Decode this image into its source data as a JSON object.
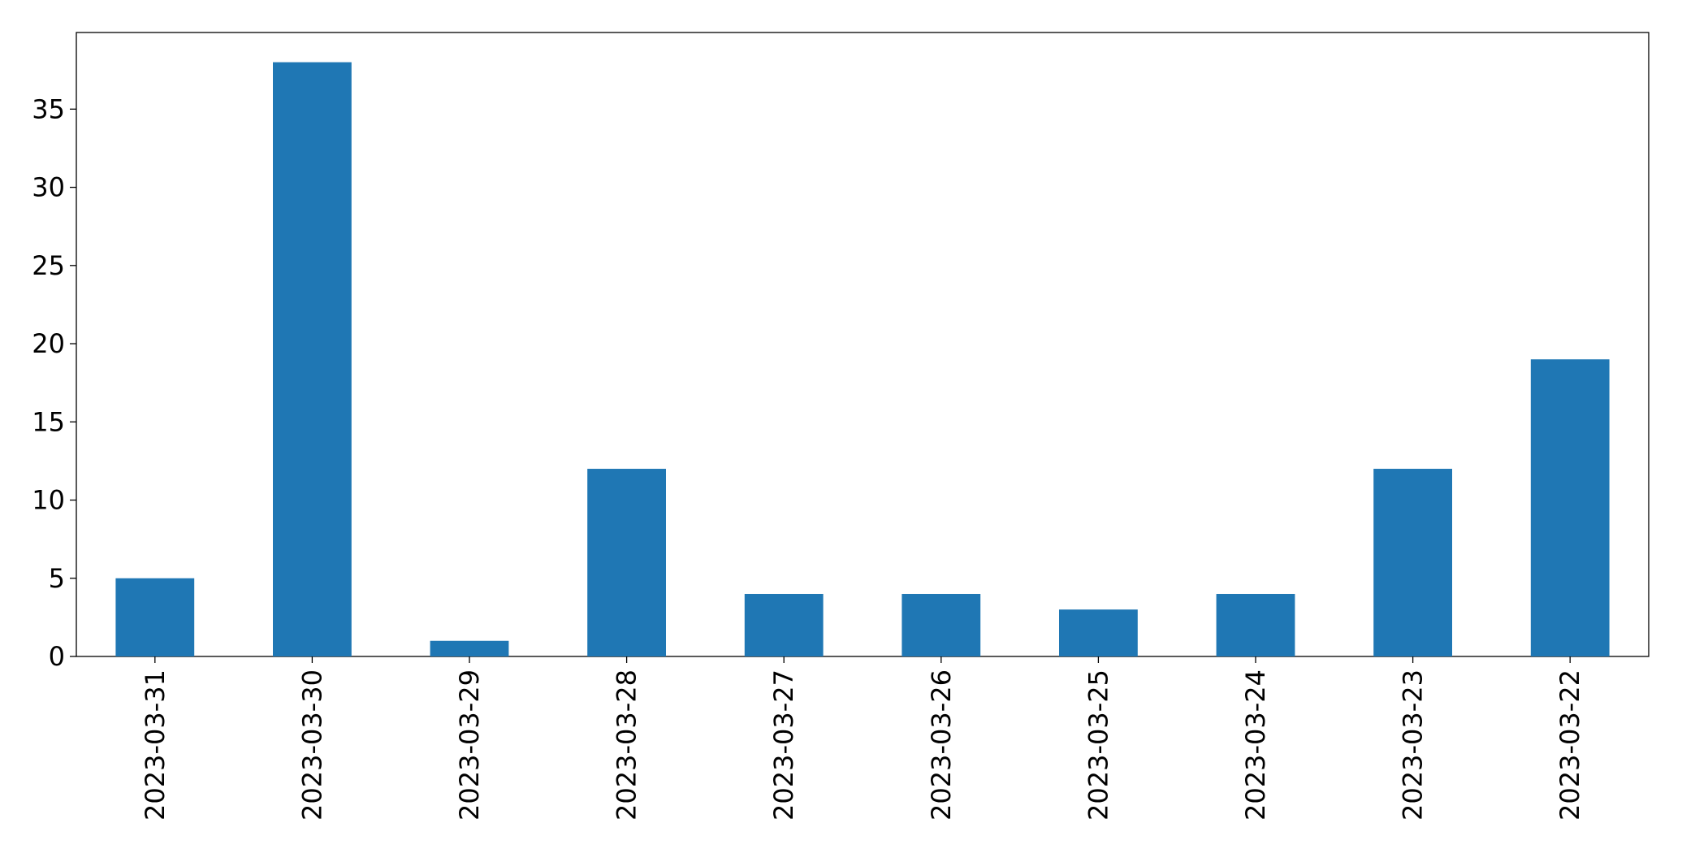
{
  "chart_data": {
    "type": "bar",
    "categories": [
      "2023-03-31",
      "2023-03-30",
      "2023-03-29",
      "2023-03-28",
      "2023-03-27",
      "2023-03-26",
      "2023-03-25",
      "2023-03-24",
      "2023-03-23",
      "2023-03-22"
    ],
    "values": [
      5,
      38,
      1,
      12,
      4,
      4,
      3,
      4,
      12,
      19
    ],
    "color": "#1f77b4",
    "ylim": [
      0,
      39.9
    ],
    "yticks": [
      0,
      5,
      10,
      15,
      20,
      25,
      30,
      35
    ],
    "grid": false
  }
}
